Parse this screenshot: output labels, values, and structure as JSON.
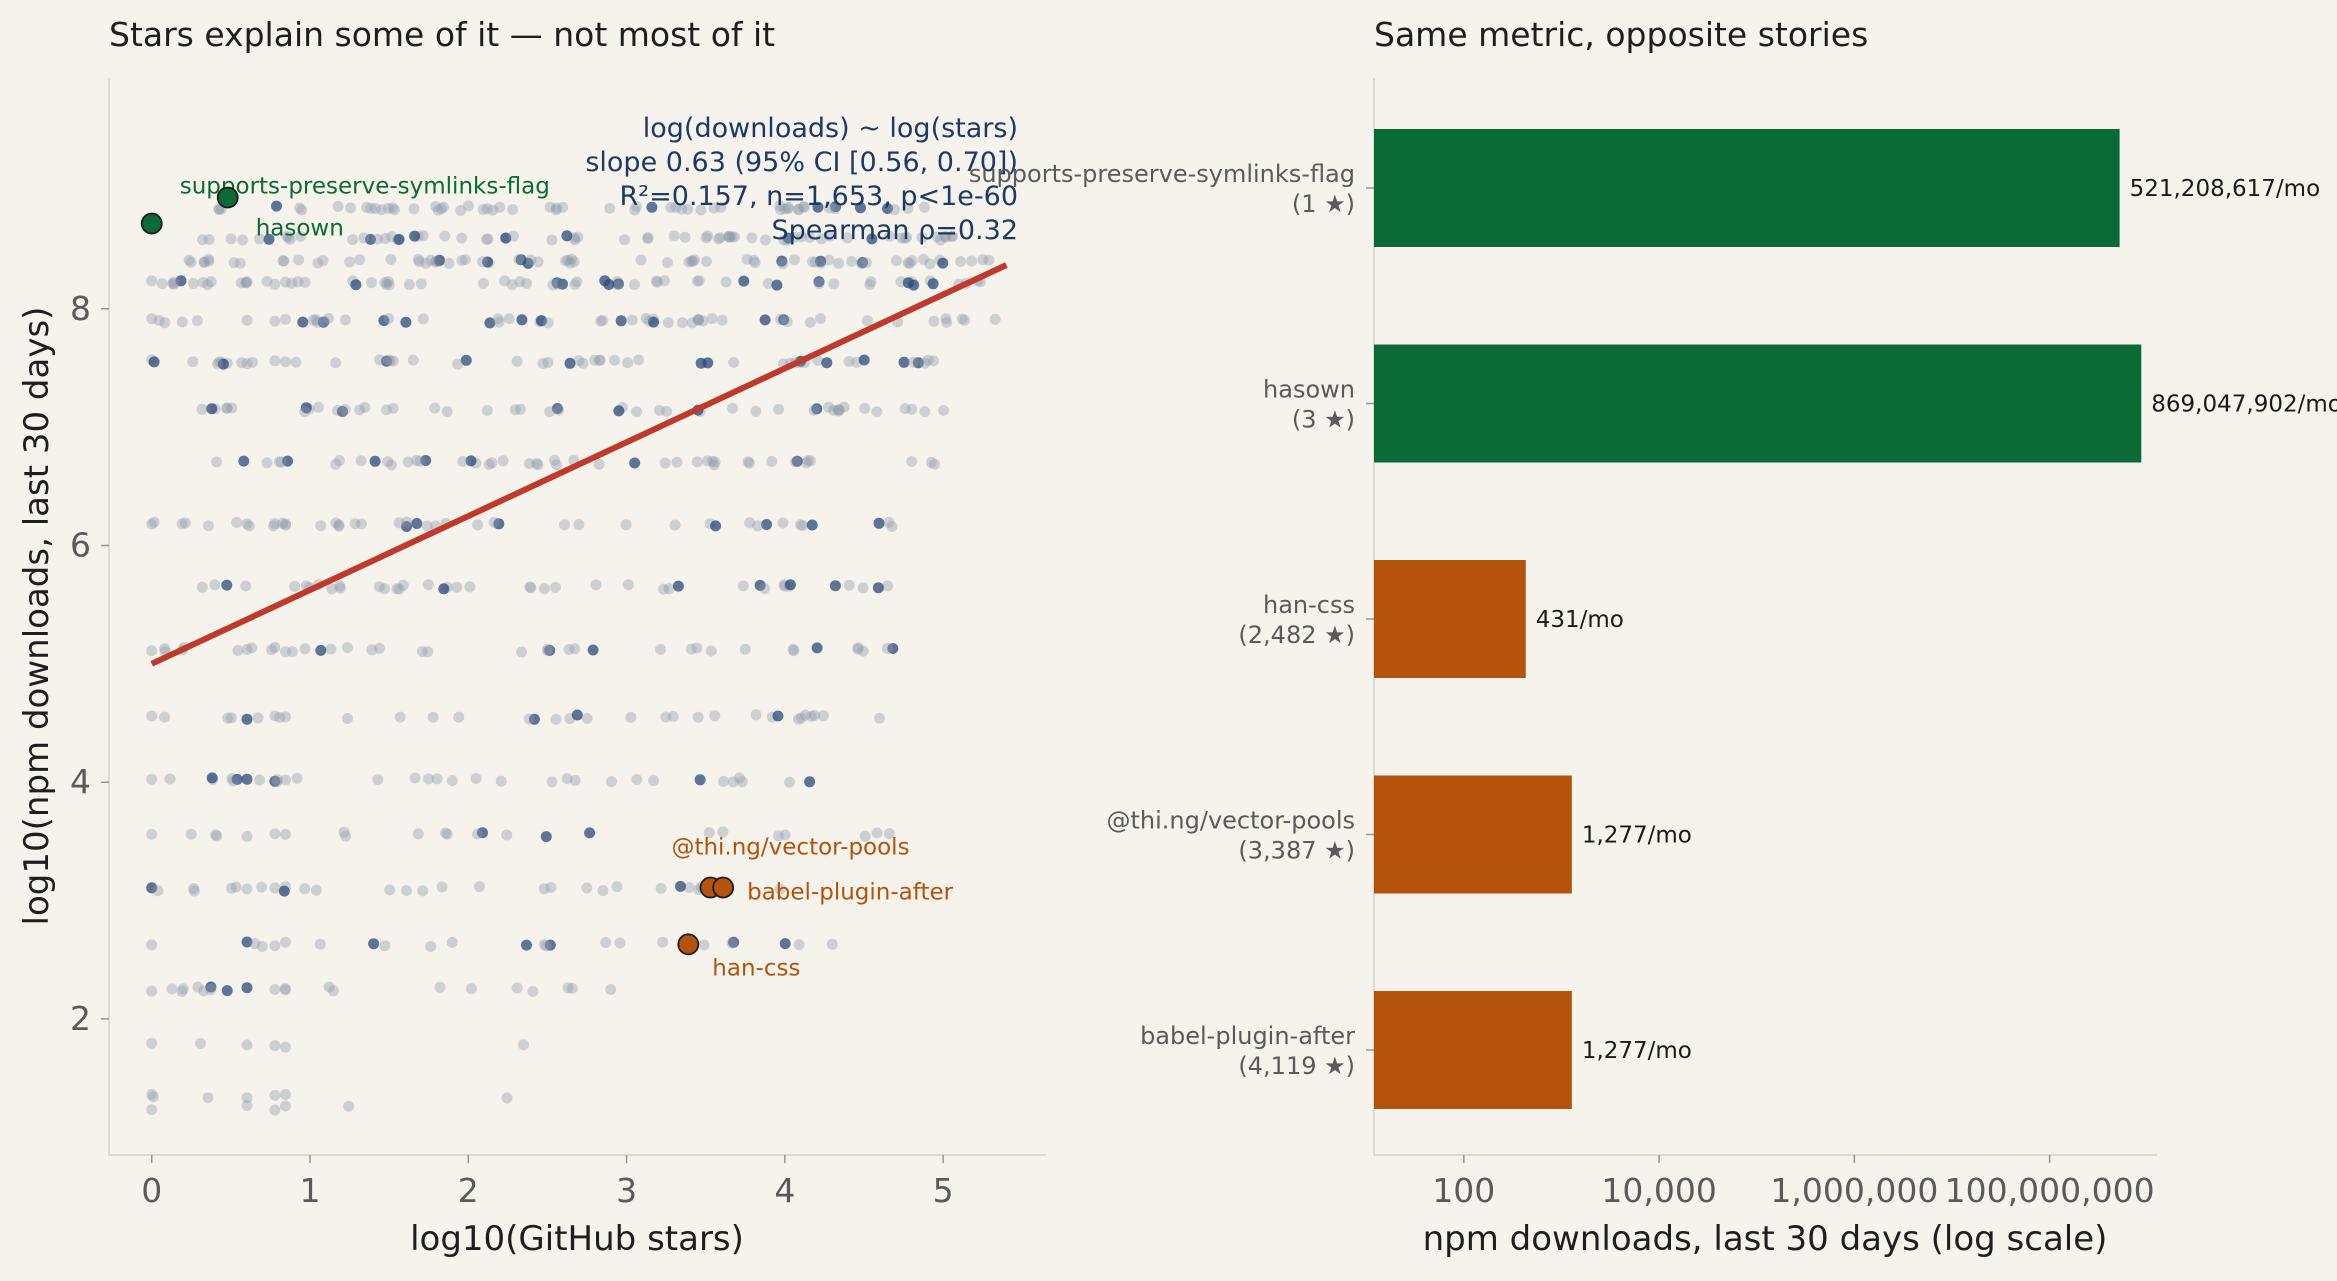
{
  "chart_data": [
    {
      "type": "scatter",
      "title": "Stars explain some of it — not most of it",
      "xlabel": "log10(GitHub stars)",
      "ylabel": "log10(npm downloads, last 30 days)",
      "xlim": [
        -0.27,
        5.65
      ],
      "ylim": [
        0.85,
        9.95
      ],
      "x_ticks": [
        0,
        1,
        2,
        3,
        4,
        5
      ],
      "y_ticks": [
        2,
        4,
        6,
        8
      ],
      "x_tick_labels": [
        "0",
        "1",
        "2",
        "3",
        "4",
        "5"
      ],
      "y_tick_labels": [
        "2",
        "4",
        "6",
        "8"
      ],
      "regression": {
        "x": [
          0,
          5.4
        ],
        "y": [
          5.0,
          8.37
        ],
        "color": "#c0392b"
      },
      "annotation": [
        "log(downloads) ~ log(stars)",
        "slope 0.63 (95% CI [0.56, 0.70])",
        "R²=0.157, n=1,653, p<1e-60",
        "Spearman ρ=0.32"
      ],
      "background_rows": [
        {
          "y": 8.85,
          "x_from": 0.4,
          "x_to": 4.9,
          "n": 60
        },
        {
          "y": 8.6,
          "x_from": 0.3,
          "x_to": 5.1,
          "n": 70
        },
        {
          "y": 8.4,
          "x_from": 0.2,
          "x_to": 5.3,
          "n": 75
        },
        {
          "y": 8.22,
          "x_from": 0.0,
          "x_to": 5.4,
          "n": 70
        },
        {
          "y": 7.9,
          "x_from": 0.0,
          "x_to": 5.35,
          "n": 60
        },
        {
          "y": 7.55,
          "x_from": 0.0,
          "x_to": 5.2,
          "n": 55
        },
        {
          "y": 7.15,
          "x_from": 0.3,
          "x_to": 5.15,
          "n": 50
        },
        {
          "y": 6.7,
          "x_from": 0.3,
          "x_to": 4.95,
          "n": 48
        },
        {
          "y": 6.18,
          "x_from": 0.0,
          "x_to": 4.75,
          "n": 45
        },
        {
          "y": 5.65,
          "x_from": 0.3,
          "x_to": 4.8,
          "n": 42
        },
        {
          "y": 5.12,
          "x_from": 0.0,
          "x_to": 4.75,
          "n": 40
        },
        {
          "y": 4.55,
          "x_from": 0.0,
          "x_to": 4.7,
          "n": 34
        },
        {
          "y": 4.02,
          "x_from": 0.0,
          "x_to": 4.2,
          "n": 34
        },
        {
          "y": 3.56,
          "x_from": 0.0,
          "x_to": 4.7,
          "n": 24
        },
        {
          "y": 3.1,
          "x_from": 0.0,
          "x_to": 4.6,
          "n": 30
        },
        {
          "y": 2.63,
          "x_from": 0.0,
          "x_to": 4.6,
          "n": 24
        },
        {
          "y": 2.25,
          "x_from": 0.0,
          "x_to": 3.0,
          "n": 22
        },
        {
          "y": 1.78,
          "x_from": 0.0,
          "x_to": 4.0,
          "n": 6
        },
        {
          "y": 1.35,
          "x_from": 0.0,
          "x_to": 2.6,
          "n": 7
        },
        {
          "y": 1.25,
          "x_from": 0.0,
          "x_to": 4.7,
          "n": 5
        }
      ],
      "highlights": [
        {
          "name": "supports-preserve-symlinks-flag",
          "x": 0.0,
          "y": 8.72,
          "color": "#0a6b36"
        },
        {
          "name": "hasown",
          "x": 0.48,
          "y": 8.94,
          "color": "#0a6b36"
        },
        {
          "name": "@thi.ng/vector-pools",
          "x": 3.53,
          "y": 3.11,
          "color": "#b5520b"
        },
        {
          "name": "babel-plugin-after",
          "x": 3.61,
          "y": 3.11,
          "color": "#b5520b"
        },
        {
          "name": "han-css",
          "x": 3.39,
          "y": 2.63,
          "color": "#b5520b"
        }
      ]
    },
    {
      "type": "bar",
      "orientation": "horizontal",
      "title": "Same metric, opposite stories",
      "xlabel": "npm downloads, last 30 days (log scale)",
      "x_scale": "log",
      "xlim_log10": [
        1.08,
        9.1
      ],
      "x_ticks": [
        100,
        10000,
        1000000,
        100000000
      ],
      "x_tick_labels": [
        "100",
        "10,000",
        "1,000,000",
        "100,000,000"
      ],
      "bars": [
        {
          "package": "supports-preserve-symlinks-flag",
          "stars_label": "(1 ★)",
          "value": 521208617,
          "value_label": "521,208,617/mo",
          "color": "#0a6b36"
        },
        {
          "package": "hasown",
          "stars_label": "(3 ★)",
          "value": 869047902,
          "value_label": "869,047,902/mo",
          "color": "#0a6b36"
        },
        {
          "package": "han-css",
          "stars_label": "(2,482 ★)",
          "value": 431,
          "value_label": "431/mo",
          "color": "#b5520b"
        },
        {
          "package": "@thi.ng/vector-pools",
          "stars_label": "(3,387 ★)",
          "value": 1277,
          "value_label": "1,277/mo",
          "color": "#b5520b"
        },
        {
          "package": "babel-plugin-after",
          "stars_label": "(4,119 ★)",
          "value": 1277,
          "value_label": "1,277/mo",
          "color": "#b5520b"
        }
      ]
    }
  ]
}
